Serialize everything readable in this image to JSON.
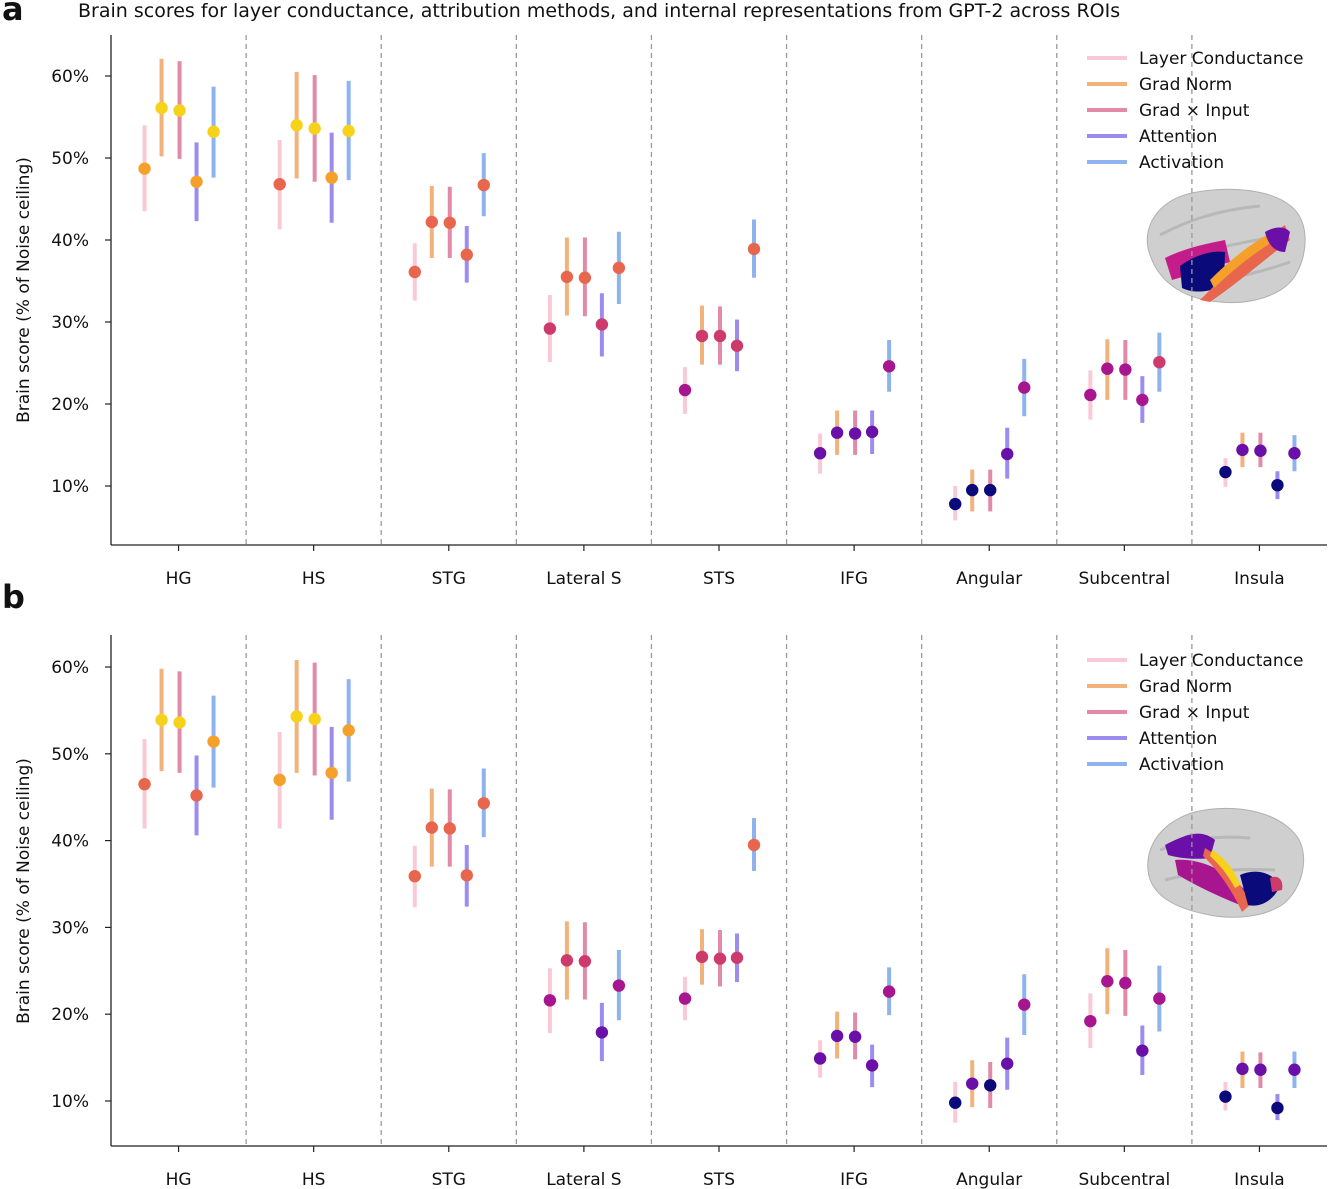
{
  "title": "Brain scores for layer conductance, attribution methods, and internal representations from GPT-2 across ROIs",
  "colors": {
    "method_bars": [
      "#f9c9d6",
      "#f2b27c",
      "#e28aa8",
      "#9d8cf0",
      "#8fb3ee"
    ],
    "point_scale": [
      "#0b0a7a",
      "#6a0fa8",
      "#a8168f",
      "#cc3b6b",
      "#e8664e",
      "#f4a02a",
      "#f6d21b"
    ],
    "axis": "#222222",
    "separator": "#999999"
  },
  "chart_data": [
    {
      "panel": "a",
      "type": "errorbar",
      "title": "Brain scores for layer conductance, attribution methods, and internal representations from GPT-2 across ROIs",
      "ylabel": "Brain score (% of Noise ceiling)",
      "ylim": [
        3,
        65
      ],
      "yticks": [
        10,
        20,
        30,
        40,
        50,
        60
      ],
      "ytick_labels": [
        "10%",
        "20%",
        "30%",
        "40%",
        "50%",
        "60%"
      ],
      "categories": [
        "HG",
        "HS",
        "STG",
        "Lateral S",
        "STS",
        "IFG",
        "Angular",
        "Subcentral",
        "Insula"
      ],
      "legend": {
        "position": "top-right",
        "entries": [
          "Layer Conductance",
          "Grad Norm",
          "Grad × Input",
          "Attention",
          "Activation"
        ]
      },
      "series": [
        {
          "name": "Layer Conductance",
          "values": [
            48.7,
            46.8,
            36.1,
            29.2,
            21.7,
            14.0,
            7.8,
            21.1,
            11.7
          ],
          "lower": [
            43.5,
            41.3,
            32.6,
            25.1,
            18.8,
            11.5,
            5.8,
            18.1,
            9.9
          ],
          "upper": [
            54.0,
            52.2,
            39.6,
            33.3,
            24.5,
            16.4,
            10.0,
            24.1,
            13.4
          ]
        },
        {
          "name": "Grad Norm",
          "values": [
            56.1,
            54.0,
            42.2,
            35.5,
            28.3,
            16.5,
            9.5,
            24.3,
            14.4
          ],
          "lower": [
            50.2,
            47.5,
            37.8,
            30.8,
            24.8,
            13.8,
            6.9,
            20.5,
            12.3
          ],
          "upper": [
            62.1,
            60.5,
            46.6,
            40.3,
            32.0,
            19.2,
            12.0,
            27.9,
            16.5
          ]
        },
        {
          "name": "Grad × Input",
          "values": [
            55.8,
            53.6,
            42.1,
            35.4,
            28.3,
            16.4,
            9.5,
            24.2,
            14.3
          ],
          "lower": [
            49.9,
            47.1,
            37.8,
            30.7,
            24.8,
            13.8,
            6.9,
            20.5,
            12.3
          ],
          "upper": [
            61.8,
            60.1,
            46.5,
            40.3,
            31.9,
            19.2,
            12.0,
            27.8,
            16.5
          ]
        },
        {
          "name": "Attention",
          "values": [
            47.1,
            47.6,
            38.2,
            29.7,
            27.1,
            16.6,
            13.9,
            20.5,
            10.1
          ],
          "lower": [
            42.3,
            42.1,
            34.8,
            25.8,
            24.0,
            13.9,
            10.9,
            17.7,
            8.4
          ],
          "upper": [
            51.9,
            53.1,
            41.7,
            33.5,
            30.3,
            19.2,
            17.1,
            23.4,
            11.8
          ]
        },
        {
          "name": "Activation",
          "values": [
            53.2,
            53.3,
            46.7,
            36.6,
            38.9,
            24.6,
            22.0,
            25.1,
            14.0
          ],
          "lower": [
            47.6,
            47.3,
            42.9,
            32.2,
            35.4,
            21.5,
            18.5,
            21.5,
            11.8
          ],
          "upper": [
            58.7,
            59.4,
            50.6,
            41.0,
            42.5,
            27.8,
            25.5,
            28.7,
            16.2
          ]
        }
      ]
    },
    {
      "panel": "b",
      "type": "errorbar",
      "title": "",
      "ylabel": "Brain score (% of Noise ceiling)",
      "ylim": [
        5,
        65
      ],
      "yticks": [
        10,
        20,
        30,
        40,
        50,
        60
      ],
      "ytick_labels": [
        "10%",
        "20%",
        "30%",
        "40%",
        "50%",
        "60%"
      ],
      "categories": [
        "HG",
        "HS",
        "STG",
        "Lateral S",
        "STS",
        "IFG",
        "Angular",
        "Subcentral",
        "Insula"
      ],
      "legend": {
        "position": "top-right",
        "entries": [
          "Layer Conductance",
          "Grad Norm",
          "Grad × Input",
          "Attention",
          "Activation"
        ]
      },
      "series": [
        {
          "name": "Layer Conductance",
          "values": [
            46.5,
            47.0,
            35.9,
            21.6,
            21.8,
            14.9,
            9.8,
            19.2,
            10.5
          ],
          "lower": [
            41.4,
            41.4,
            32.3,
            17.8,
            19.3,
            12.7,
            7.5,
            16.1,
            8.9
          ],
          "upper": [
            51.7,
            52.5,
            39.4,
            25.3,
            24.3,
            17.0,
            12.2,
            22.4,
            12.2
          ]
        },
        {
          "name": "Grad Norm",
          "values": [
            53.9,
            54.3,
            41.5,
            26.2,
            26.6,
            17.5,
            12.0,
            23.8,
            13.7
          ],
          "lower": [
            48.0,
            47.8,
            37.0,
            21.7,
            23.4,
            14.9,
            9.3,
            20.0,
            11.5
          ],
          "upper": [
            59.8,
            60.8,
            46.0,
            30.7,
            29.8,
            20.3,
            14.7,
            27.6,
            15.7
          ]
        },
        {
          "name": "Grad × Input",
          "values": [
            53.6,
            54.0,
            41.4,
            26.1,
            26.4,
            17.4,
            11.8,
            23.6,
            13.6
          ],
          "lower": [
            47.8,
            47.5,
            37.0,
            21.7,
            23.2,
            14.8,
            9.2,
            19.8,
            11.5
          ],
          "upper": [
            59.5,
            60.5,
            45.9,
            30.6,
            29.7,
            20.2,
            14.5,
            27.4,
            15.6
          ]
        },
        {
          "name": "Attention",
          "values": [
            45.2,
            47.8,
            36.0,
            17.9,
            26.5,
            14.1,
            14.3,
            15.8,
            9.2
          ],
          "lower": [
            40.6,
            42.4,
            32.4,
            14.6,
            23.7,
            11.6,
            11.3,
            13.0,
            7.8
          ],
          "upper": [
            49.8,
            53.1,
            39.5,
            21.3,
            29.3,
            16.5,
            17.3,
            18.7,
            10.8
          ]
        },
        {
          "name": "Activation",
          "values": [
            51.4,
            52.7,
            44.3,
            23.3,
            39.5,
            22.6,
            21.1,
            21.8,
            13.6
          ],
          "lower": [
            46.1,
            46.8,
            40.4,
            19.3,
            36.5,
            19.9,
            17.6,
            18.0,
            11.5
          ],
          "upper": [
            56.7,
            58.6,
            48.3,
            27.4,
            42.6,
            25.4,
            24.6,
            25.6,
            15.7
          ]
        }
      ]
    }
  ]
}
